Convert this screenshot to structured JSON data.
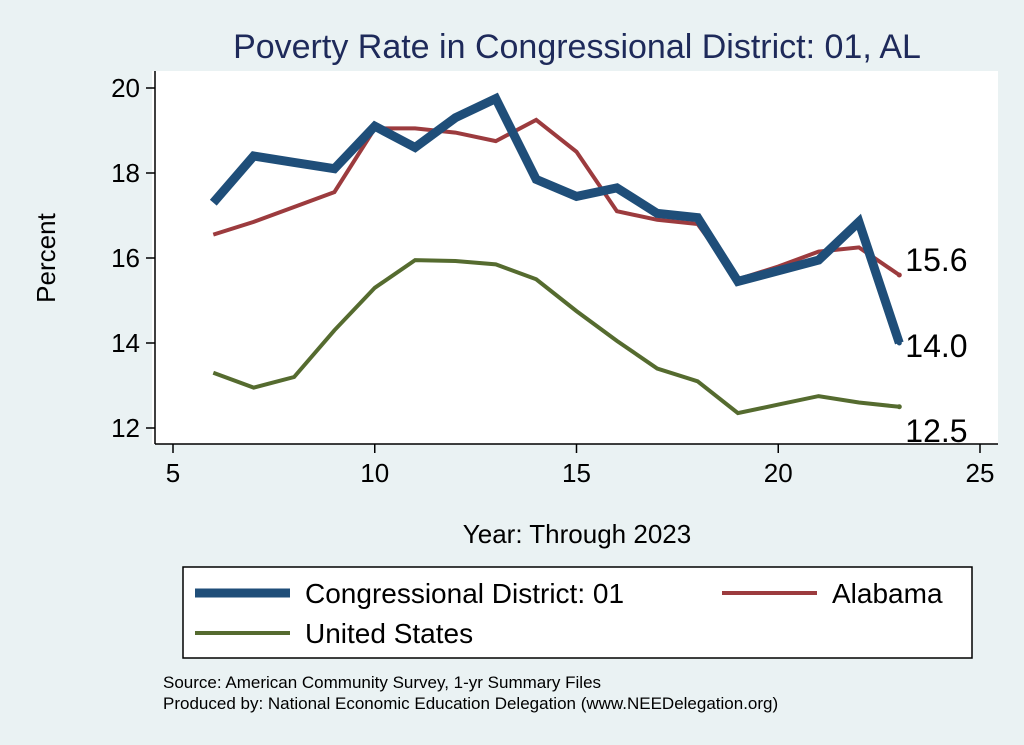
{
  "chart_data": {
    "type": "line",
    "title": "Poverty Rate in Congressional District:  01, AL",
    "xlabel": "Year: Through 2023",
    "ylabel": "Percent",
    "xlim": [
      5,
      25
    ],
    "ylim": [
      12,
      20
    ],
    "x_ticks": [
      "5",
      "10",
      "15",
      "20",
      "25"
    ],
    "y_ticks": [
      "12",
      "14",
      "16",
      "18",
      "20"
    ],
    "grid": "horizontal",
    "legend_position": "bottom",
    "series": [
      {
        "name": "Congressional District:  01",
        "color": "#1f4e79",
        "line_weight": "thick",
        "points": [
          [
            6,
            17.3
          ],
          [
            7,
            18.4
          ],
          [
            8,
            18.25
          ],
          [
            9,
            18.1
          ],
          [
            10,
            19.1
          ],
          [
            11,
            18.6
          ],
          [
            12,
            19.3
          ],
          [
            13,
            19.75
          ],
          [
            14,
            17.85
          ],
          [
            15,
            17.45
          ],
          [
            16,
            17.65
          ],
          [
            17,
            17.05
          ],
          [
            18,
            16.95
          ],
          [
            19,
            15.45
          ],
          [
            20,
            15.7
          ],
          [
            21,
            15.95
          ],
          [
            22,
            16.85
          ],
          [
            23,
            14.0
          ]
        ],
        "end_label": "14.0"
      },
      {
        "name": "Alabama",
        "color": "#9c3b3e",
        "line_weight": "medium",
        "points": [
          [
            6,
            16.55
          ],
          [
            7,
            16.85
          ],
          [
            8,
            17.2
          ],
          [
            9,
            17.55
          ],
          [
            10,
            19.05
          ],
          [
            11,
            19.05
          ],
          [
            12,
            18.95
          ],
          [
            13,
            18.75
          ],
          [
            14,
            19.25
          ],
          [
            15,
            18.5
          ],
          [
            16,
            17.1
          ],
          [
            17,
            16.9
          ],
          [
            18,
            16.8
          ],
          [
            19,
            15.5
          ],
          [
            20,
            15.8
          ],
          [
            21,
            16.15
          ],
          [
            22,
            16.25
          ],
          [
            23,
            15.6
          ]
        ],
        "end_label": "15.6"
      },
      {
        "name": "United States",
        "color": "#556b2f",
        "line_weight": "medium",
        "points": [
          [
            6,
            13.3
          ],
          [
            7,
            12.95
          ],
          [
            8,
            13.2
          ],
          [
            9,
            14.3
          ],
          [
            10,
            15.3
          ],
          [
            11,
            15.95
          ],
          [
            12,
            15.93
          ],
          [
            13,
            15.85
          ],
          [
            14,
            15.5
          ],
          [
            15,
            14.75
          ],
          [
            16,
            14.05
          ],
          [
            17,
            13.4
          ],
          [
            18,
            13.1
          ],
          [
            19,
            12.35
          ],
          [
            20,
            12.55
          ],
          [
            21,
            12.75
          ],
          [
            22,
            12.6
          ],
          [
            23,
            12.5
          ]
        ],
        "end_label": "12.5"
      }
    ]
  },
  "footer": {
    "source": "Source: American Community Survey, 1-yr Summary Files",
    "produced_by": "Produced by: National Economic Education Delegation (www.NEEDelegation.org)"
  }
}
